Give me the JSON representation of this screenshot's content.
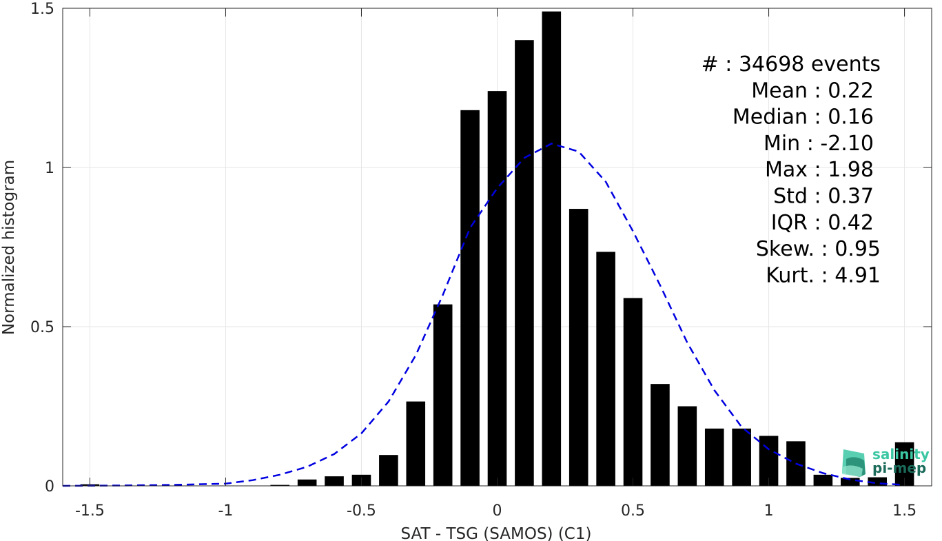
{
  "chart_data": {
    "type": "bar",
    "title": "",
    "xlabel": "SAT - TSG (SAMOS) (C1)",
    "ylabel": "Normalized histogram",
    "xlim": [
      -1.6,
      1.6
    ],
    "ylim": [
      0,
      1.5
    ],
    "grid": true,
    "x_ticks": [
      -1.5,
      -1,
      -0.5,
      0,
      0.5,
      1,
      1.5
    ],
    "x_tick_labels": [
      "-1.5",
      "-1",
      "-0.5",
      "0",
      "0.5",
      "1",
      "1.5"
    ],
    "y_ticks": [
      0,
      0.5,
      1,
      1.5
    ],
    "y_tick_labels": [
      "0",
      "0.5",
      "1",
      "1.5"
    ],
    "bar_width": 0.07,
    "bar_color": "#000000",
    "x": [
      -1.5,
      -1.4,
      -1.3,
      -1.2,
      -1.1,
      -1.0,
      -0.9,
      -0.8,
      -0.7,
      -0.6,
      -0.5,
      -0.4,
      -0.3,
      -0.2,
      -0.1,
      0.0,
      0.1,
      0.2,
      0.3,
      0.4,
      0.5,
      0.6,
      0.7,
      0.8,
      0.9,
      1.0,
      1.1,
      1.2,
      1.3,
      1.4,
      1.5
    ],
    "values": [
      0.005,
      0.0,
      0.0,
      0.0,
      0.0,
      0.0,
      0.001,
      0.003,
      0.02,
      0.03,
      0.035,
      0.097,
      0.265,
      0.57,
      1.18,
      1.24,
      1.4,
      1.49,
      0.87,
      0.735,
      0.59,
      0.32,
      0.25,
      0.18,
      0.18,
      0.157,
      0.14,
      0.035,
      0.025,
      0.027,
      0.137
    ],
    "fit_curve": {
      "style": "dashed",
      "color": "#0000e0",
      "x": [
        -1.6,
        -1.4,
        -1.2,
        -1.0,
        -0.9,
        -0.8,
        -0.7,
        -0.6,
        -0.5,
        -0.4,
        -0.3,
        -0.2,
        -0.1,
        0.0,
        0.1,
        0.2,
        0.3,
        0.4,
        0.5,
        0.6,
        0.7,
        0.8,
        0.9,
        1.0,
        1.1,
        1.2,
        1.3,
        1.4,
        1.5
      ],
      "y": [
        0.0,
        0.001,
        0.003,
        0.007,
        0.018,
        0.035,
        0.06,
        0.1,
        0.165,
        0.265,
        0.41,
        0.6,
        0.81,
        0.935,
        1.03,
        1.075,
        1.05,
        0.955,
        0.8,
        0.63,
        0.45,
        0.3,
        0.185,
        0.115,
        0.07,
        0.04,
        0.02,
        0.008,
        0.003
      ]
    },
    "stats": [
      {
        "label": "#  : 34698 events"
      },
      {
        "label": "Mean : 0.22"
      },
      {
        "label": "Median : 0.16"
      },
      {
        "label": "Min : -2.10"
      },
      {
        "label": "Max : 1.98"
      },
      {
        "label": "Std : 0.37"
      },
      {
        "label": "IQR : 0.42"
      },
      {
        "label": "Skew. : 0.95"
      },
      {
        "label": "Kurt. : 4.91"
      }
    ]
  },
  "logo": {
    "line1": "salinity",
    "line2": "pi-mep",
    "color_light": "#3cc7a4",
    "color_dark": "#1a6a5a"
  }
}
